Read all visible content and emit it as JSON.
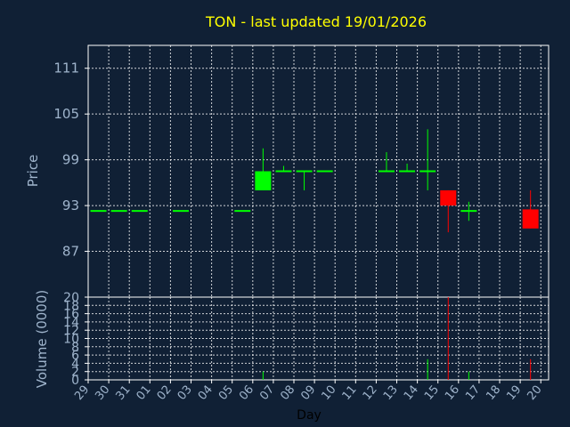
{
  "chart_data": {
    "type": "candlestick",
    "title": "TON - last updated 19/01/2026",
    "xlabel": "Day",
    "price_panel": {
      "ylabel": "Price",
      "yticks": [
        87,
        93,
        99,
        105,
        111
      ],
      "ylim": [
        81,
        114
      ],
      "grid": true
    },
    "volume_panel": {
      "ylabel": "Volume (0000)",
      "yticks": [
        0,
        2,
        4,
        6,
        8,
        10,
        12,
        14,
        16,
        18,
        20
      ],
      "ylim": [
        0,
        20
      ],
      "grid": true
    },
    "x_tick_labels": [
      "29",
      "30",
      "31",
      "01",
      "02",
      "03",
      "04",
      "05",
      "06",
      "07",
      "08",
      "09",
      "10",
      "11",
      "12",
      "13",
      "14",
      "15",
      "16",
      "17",
      "18",
      "19",
      "20"
    ],
    "candles": [
      {
        "day": "29",
        "open": 92.3,
        "high": 92.3,
        "low": 92.3,
        "close": 92.3,
        "volume": 0
      },
      {
        "day": "30",
        "open": 92.3,
        "high": 92.3,
        "low": 92.3,
        "close": 92.3,
        "volume": 0
      },
      {
        "day": "31",
        "open": 92.3,
        "high": 92.3,
        "low": 92.3,
        "close": 92.3,
        "volume": 0
      },
      {
        "day": "02",
        "open": 92.3,
        "high": 92.3,
        "low": 92.3,
        "close": 92.3,
        "volume": 0
      },
      {
        "day": "05",
        "open": 92.3,
        "high": 92.3,
        "low": 92.3,
        "close": 92.3,
        "volume": 0
      },
      {
        "day": "06",
        "open": 95.0,
        "high": 100.5,
        "low": 95.0,
        "close": 97.5,
        "volume": 2
      },
      {
        "day": "07",
        "open": 97.5,
        "high": 98.2,
        "low": 97.5,
        "close": 97.5,
        "volume": 0
      },
      {
        "day": "08",
        "open": 97.5,
        "high": 97.5,
        "low": 95.0,
        "close": 97.5,
        "volume": 0
      },
      {
        "day": "09",
        "open": 97.5,
        "high": 97.5,
        "low": 97.5,
        "close": 97.5,
        "volume": 0
      },
      {
        "day": "12",
        "open": 97.5,
        "high": 100.0,
        "low": 97.5,
        "close": 97.5,
        "volume": 0
      },
      {
        "day": "13",
        "open": 97.5,
        "high": 98.5,
        "low": 97.5,
        "close": 97.5,
        "volume": 0
      },
      {
        "day": "14",
        "open": 97.5,
        "high": 103.0,
        "low": 95.0,
        "close": 97.5,
        "volume": 5
      },
      {
        "day": "15",
        "open": 95.0,
        "high": 95.0,
        "low": 89.5,
        "close": 93.0,
        "volume": 20
      },
      {
        "day": "16",
        "open": 92.3,
        "high": 93.5,
        "low": 91.0,
        "close": 92.3,
        "volume": 2
      },
      {
        "day": "19",
        "open": 92.5,
        "high": 95.0,
        "low": 90.0,
        "close": 90.0,
        "volume": 5
      }
    ],
    "colors": {
      "background": "#102035",
      "up": "#00ff00",
      "down": "#ff0000",
      "grid": "#ffffff",
      "title": "#ffff00",
      "labels": "#9fb4cc"
    }
  }
}
